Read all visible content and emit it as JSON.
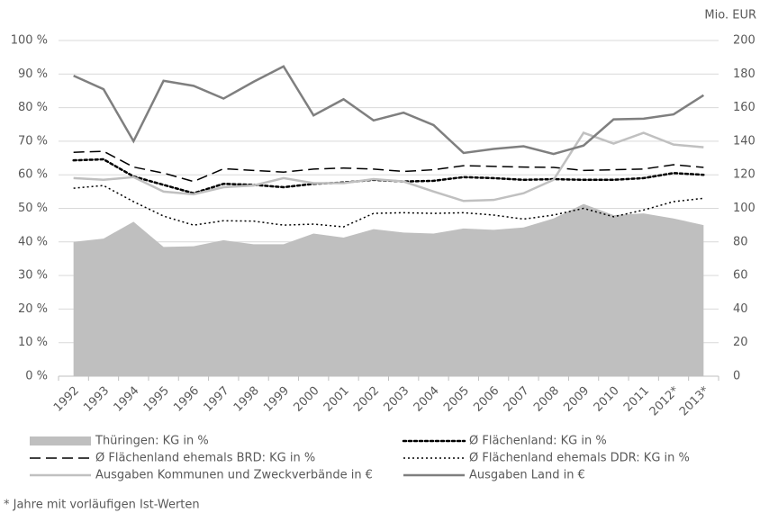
{
  "chart_data": {
    "type": "line",
    "y2label": "Mio. EUR",
    "categories": [
      "1992",
      "1993",
      "1994",
      "1995",
      "1996",
      "1997",
      "1998",
      "1999",
      "2000",
      "2001",
      "2002",
      "2003",
      "2004",
      "2005",
      "2006",
      "2007",
      "2008",
      "2009",
      "2010",
      "2011",
      "2012*",
      "2013*"
    ],
    "series": [
      {
        "name": "Thüringen: KG in %",
        "color": "#bfbfbf",
        "style": "area",
        "values": [
          40,
          41,
          46,
          38.5,
          38.7,
          40.5,
          39.3,
          39.3,
          42.5,
          41.3,
          43.8,
          42.8,
          42.5,
          44,
          43.6,
          44.3,
          47,
          51.3,
          48,
          48.5,
          47,
          45
        ]
      },
      {
        "name": "Ø Flächenland: KG in %",
        "color": "#000000",
        "style": "round-dot",
        "values": [
          64.3,
          64.6,
          59.5,
          57,
          54.5,
          57.3,
          57,
          56.3,
          57.3,
          57.7,
          58.5,
          58,
          58.2,
          59.3,
          59,
          58.5,
          58.7,
          58.5,
          58.5,
          59,
          60.5,
          60
        ]
      },
      {
        "name": "Ø Flächenland ehemals BRD: KG in %",
        "color": "#000000",
        "style": "long-dash",
        "values": [
          66.7,
          67,
          62.3,
          60.5,
          58,
          61.8,
          61.3,
          60.8,
          61.7,
          62,
          61.7,
          61,
          61.5,
          62.7,
          62.5,
          62.3,
          62.2,
          61.3,
          61.5,
          61.7,
          63,
          62.2
        ]
      },
      {
        "name": "Ø Flächenland ehemals DDR: KG in %",
        "color": "#000000",
        "style": "square-dot",
        "values": [
          56,
          56.8,
          52,
          47.7,
          45,
          46.3,
          46.2,
          45,
          45.3,
          44.5,
          48.5,
          48.7,
          48.5,
          48.7,
          48,
          46.8,
          48,
          50,
          47.5,
          49.5,
          52,
          53
        ]
      },
      {
        "name": "Ausgaben Kommunen und Zweckverbände in €",
        "color": "#c0c0c0",
        "style": "solid",
        "axis": "y2",
        "values": [
          118,
          117,
          118.6,
          110,
          108.4,
          112.6,
          113.6,
          118,
          115,
          115,
          117.4,
          116,
          110,
          104.4,
          105,
          109,
          117,
          145,
          138.6,
          145,
          138,
          136.4
        ]
      },
      {
        "name": "Ausgaben Land in €",
        "color": "#7f7f7f",
        "style": "solid",
        "axis": "y2",
        "values": [
          179,
          171,
          140,
          176,
          173,
          165.4,
          175.4,
          184.6,
          155.4,
          165,
          152.4,
          157,
          149.6,
          133,
          135.4,
          137,
          132.4,
          137.4,
          153,
          153.4,
          156,
          167.4
        ]
      }
    ],
    "ylim": [
      0,
      100
    ],
    "yticks": [
      {
        "value": 0,
        "label": "0 %"
      },
      {
        "value": 10,
        "label": "10 %"
      },
      {
        "value": 20,
        "label": "20 %"
      },
      {
        "value": 30,
        "label": "30 %"
      },
      {
        "value": 40,
        "label": "40 %"
      },
      {
        "value": 50,
        "label": "50 %"
      },
      {
        "value": 60,
        "label": "60 %"
      },
      {
        "value": 70,
        "label": "70 %"
      },
      {
        "value": 80,
        "label": "80 %"
      },
      {
        "value": 90,
        "label": "90 %"
      },
      {
        "value": 100,
        "label": "100 %"
      }
    ],
    "y2lim": [
      0,
      200
    ],
    "y2ticks": [
      0,
      20,
      40,
      60,
      80,
      100,
      120,
      140,
      160,
      180,
      200
    ],
    "grid": true,
    "footnote": "* Jahre mit vorläufigen Ist-Werten"
  }
}
